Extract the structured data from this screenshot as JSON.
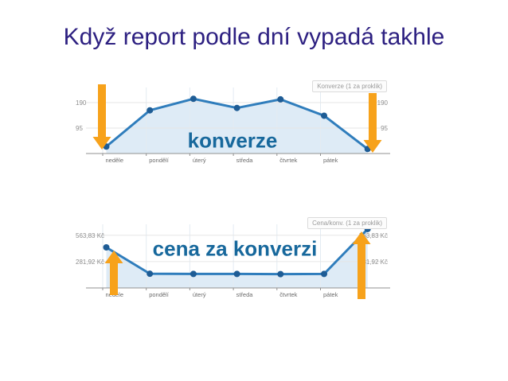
{
  "slide": {
    "title": "Když report podle dní vypadá takhle"
  },
  "colors": {
    "title": "#2D2081",
    "line": "#2F7DBC",
    "dot": "#1E5C95",
    "area": "#DEEBF6",
    "arrow": "#F7A21B",
    "annotation": "#17689C",
    "axis": "#909090",
    "gridline": "#E6E6E6"
  },
  "chart_data": [
    {
      "type": "area",
      "title": "Konverze (1 za proklik)",
      "annotation": "konverze",
      "categories": [
        "neděle",
        "pondělí",
        "úterý",
        "středa",
        "čtvrtek",
        "pátek",
        ""
      ],
      "values": [
        26,
        161,
        204,
        170,
        202,
        141,
        17
      ],
      "yticks": [
        {
          "value": 95,
          "label": "95"
        },
        {
          "value": 190,
          "label": "190"
        }
      ],
      "ylim": [
        0,
        264
      ],
      "xlabel": "",
      "ylabel": "",
      "grid": true,
      "legend_position": "top-right",
      "arrows": [
        {
          "direction": "down",
          "at": "first"
        },
        {
          "direction": "down",
          "at": "last"
        }
      ]
    },
    {
      "type": "area",
      "title": "Cena/konv. (1 za proklik)",
      "annotation": "cena za konverzi",
      "categories": [
        "neděle",
        "pondělí",
        "úterý",
        "středa",
        "čtvrtek",
        "pátek",
        ""
      ],
      "values": [
        434,
        152,
        150,
        150,
        148,
        150,
        630
      ],
      "yticks": [
        {
          "value": 281.92,
          "label": "281,92 Kč"
        },
        {
          "value": 563.83,
          "label": "563,83 Kč"
        }
      ],
      "ylim": [
        0,
        732
      ],
      "xlabel": "",
      "ylabel": "",
      "grid": true,
      "legend_position": "top-right",
      "arrows": [
        {
          "direction": "up",
          "at": "first"
        },
        {
          "direction": "up",
          "at": "last"
        }
      ]
    }
  ]
}
